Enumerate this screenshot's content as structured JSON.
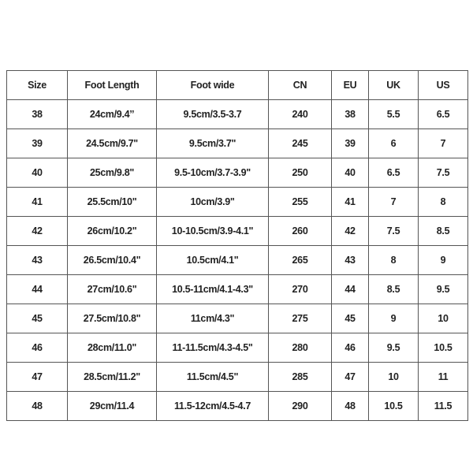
{
  "table": {
    "headers": [
      "Size",
      "Foot Length",
      "Foot wide",
      "CN",
      "EU",
      "UK",
      "US"
    ],
    "rows": [
      [
        "38",
        "24cm/9.4’’",
        "9.5cm/3.5-3.7",
        "240",
        "38",
        "5.5",
        "6.5"
      ],
      [
        "39",
        "24.5cm/9.7\"",
        "9.5cm/3.7\"",
        "245",
        "39",
        "6",
        "7"
      ],
      [
        "40",
        "25cm/9.8\"",
        "9.5-10cm/3.7-3.9\"",
        "250",
        "40",
        "6.5",
        "7.5"
      ],
      [
        "41",
        "25.5cm/10\"",
        "10cm/3.9\"",
        "255",
        "41",
        "7",
        "8"
      ],
      [
        "42",
        "26cm/10.2\"",
        "10-10.5cm/3.9-4.1\"",
        "260",
        "42",
        "7.5",
        "8.5"
      ],
      [
        "43",
        "26.5cm/10.4\"",
        "10.5cm/4.1\"",
        "265",
        "43",
        "8",
        "9"
      ],
      [
        "44",
        "27cm/10.6\"",
        "10.5-11cm/4.1-4.3\"",
        "270",
        "44",
        "8.5",
        "9.5"
      ],
      [
        "45",
        "27.5cm/10.8\"",
        "11cm/4.3\"",
        "275",
        "45",
        "9",
        "10"
      ],
      [
        "46",
        "28cm/11.0\"",
        "11-11.5cm/4.3-4.5\"",
        "280",
        "46",
        "9.5",
        "10.5"
      ],
      [
        "47",
        "28.5cm/11.2\"",
        "11.5cm/4.5\"",
        "285",
        "47",
        "10",
        "11"
      ],
      [
        "48",
        "29cm/11.4",
        "11.5-12cm/4.5-4.7",
        "290",
        "48",
        "10.5",
        "11.5"
      ]
    ]
  }
}
